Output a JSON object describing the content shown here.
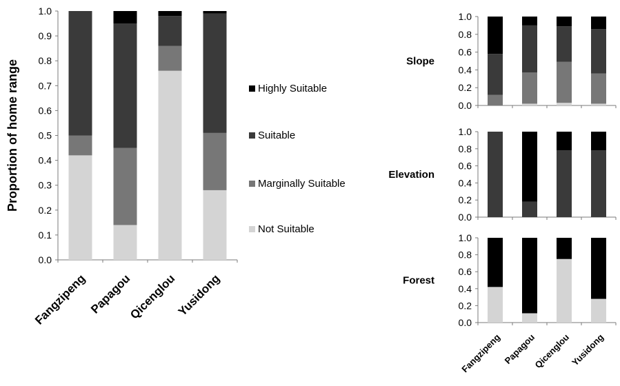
{
  "chart_data": [
    {
      "type": "bar",
      "stacked": true,
      "title": "",
      "xlabel": "",
      "ylabel": "Proportion of home range",
      "ylim": [
        0,
        1.0
      ],
      "yticks": [
        "0.0",
        "0.1",
        "0.2",
        "0.3",
        "0.4",
        "0.5",
        "0.6",
        "0.7",
        "0.8",
        "0.9",
        "1.0"
      ],
      "categories": [
        "Fangzipeng",
        "Papagou",
        "Qicenglou",
        "Yusidong"
      ],
      "series": [
        {
          "name": "Not Suitable",
          "values": [
            0.42,
            0.14,
            0.76,
            0.28
          ],
          "color": "#d4d4d4"
        },
        {
          "name": "Marginally Suitable",
          "values": [
            0.08,
            0.31,
            0.1,
            0.23
          ],
          "color": "#777777"
        },
        {
          "name": "Suitable",
          "values": [
            0.5,
            0.5,
            0.12,
            0.48
          ],
          "color": "#3a3a3a"
        },
        {
          "name": "Highly Suitable",
          "values": [
            0.0,
            0.05,
            0.02,
            0.01
          ],
          "color": "#000000"
        }
      ],
      "legend": {
        "placement": "right",
        "items": [
          "Highly Suitable",
          "Suitable",
          "Marginally Suitable",
          "Not Suitable"
        ]
      },
      "grid": false
    },
    {
      "type": "bar",
      "stacked": true,
      "title": "Slope",
      "ylim": [
        0,
        1.0
      ],
      "yticks": [
        "0.0",
        "0.2",
        "0.4",
        "0.6",
        "0.8",
        "1.0"
      ],
      "categories": [
        "Fangzipeng",
        "Papagou",
        "Qicenglou",
        "Yusidong"
      ],
      "series": [
        {
          "name": "Not Suitable",
          "values": [
            0.0,
            0.02,
            0.03,
            0.02
          ],
          "color": "#d4d4d4"
        },
        {
          "name": "Marginally Suitable",
          "values": [
            0.12,
            0.35,
            0.46,
            0.34
          ],
          "color": "#777777"
        },
        {
          "name": "Suitable",
          "values": [
            0.46,
            0.53,
            0.4,
            0.5
          ],
          "color": "#3a3a3a"
        },
        {
          "name": "Highly Suitable",
          "values": [
            0.42,
            0.1,
            0.11,
            0.14
          ],
          "color": "#000000"
        }
      ],
      "grid": false
    },
    {
      "type": "bar",
      "stacked": true,
      "title": "Elevation",
      "ylim": [
        0,
        1.0
      ],
      "yticks": [
        "0.0",
        "0.2",
        "0.4",
        "0.6",
        "0.8",
        "1.0"
      ],
      "categories": [
        "Fangzipeng",
        "Papagou",
        "Qicenglou",
        "Yusidong"
      ],
      "series": [
        {
          "name": "Suitable",
          "values": [
            1.0,
            0.18,
            0.78,
            0.78
          ],
          "color": "#3a3a3a"
        },
        {
          "name": "Highly Suitable",
          "values": [
            0.0,
            0.82,
            0.22,
            0.22
          ],
          "color": "#000000"
        }
      ],
      "grid": false
    },
    {
      "type": "bar",
      "stacked": true,
      "title": "Forest",
      "ylim": [
        0,
        1.0
      ],
      "yticks": [
        "0.0",
        "0.2",
        "0.4",
        "0.6",
        "0.8",
        "1.0"
      ],
      "categories": [
        "Fangzipeng",
        "Papagou",
        "Qicenglou",
        "Yusidong"
      ],
      "series": [
        {
          "name": "Not Suitable",
          "values": [
            0.42,
            0.11,
            0.75,
            0.28
          ],
          "color": "#d4d4d4"
        },
        {
          "name": "Highly Suitable",
          "values": [
            0.58,
            0.89,
            0.25,
            0.72
          ],
          "color": "#000000"
        }
      ],
      "grid": false
    }
  ]
}
